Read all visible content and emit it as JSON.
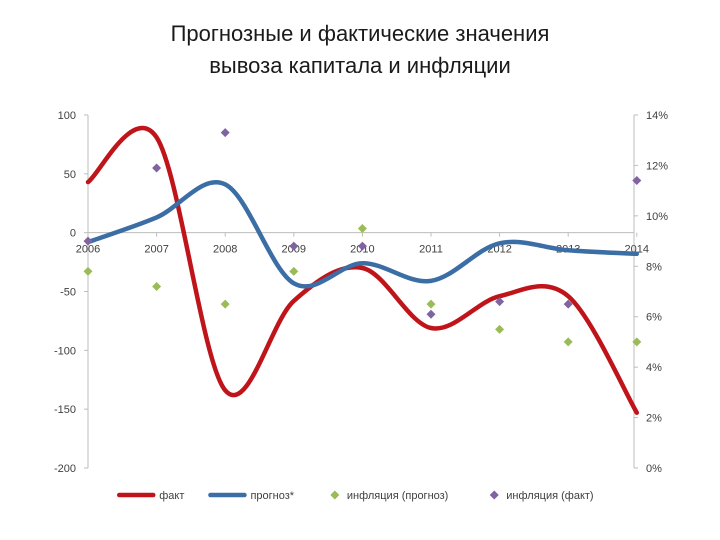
{
  "title_lines": [
    "Прогнозные и фактические значения",
    "вывоза капитала и инфляции"
  ],
  "chart_data": {
    "type": "line",
    "categories": [
      "2006",
      "2007",
      "2008",
      "2009",
      "2010",
      "2011",
      "2012",
      "2013",
      "2014"
    ],
    "y_left": {
      "min": -200,
      "max": 100,
      "ticks": [
        100,
        50,
        0,
        -50,
        -100,
        -150,
        -200
      ],
      "tick_labels": [
        "100",
        "50",
        "0",
        "-50",
        "-100",
        "-150",
        "-200"
      ]
    },
    "y_right": {
      "min": 0,
      "max": 14,
      "ticks": [
        14,
        12,
        10,
        8,
        6,
        4,
        2,
        0
      ],
      "tick_labels": [
        "14%",
        "12%",
        "10%",
        "8%",
        "6%",
        "4%",
        "2%",
        "0%"
      ]
    },
    "grid": false,
    "legend_position": "bottom",
    "series": [
      {
        "name": "факт",
        "axis": "left",
        "kind": "line",
        "color": "#c0141b",
        "values": [
          43,
          81,
          -134,
          -58,
          -30,
          -81,
          -54,
          -54,
          -153
        ]
      },
      {
        "name": "прогноз*",
        "axis": "left",
        "kind": "line",
        "color": "#3a6ea5",
        "values": [
          -8,
          13,
          41,
          -43,
          -26,
          -41,
          -9,
          -15,
          -18
        ]
      },
      {
        "name": "инфляция (прогноз)",
        "axis": "right",
        "kind": "marker",
        "color": "#9bbb59",
        "values": [
          7.8,
          7.2,
          6.5,
          7.8,
          9.5,
          6.5,
          5.5,
          5.0,
          5.0
        ]
      },
      {
        "name": "инфляция (факт)",
        "axis": "right",
        "kind": "marker",
        "color": "#8064a2",
        "values": [
          9.0,
          11.9,
          13.3,
          8.8,
          8.8,
          6.1,
          6.6,
          6.5,
          11.4
        ]
      }
    ]
  }
}
